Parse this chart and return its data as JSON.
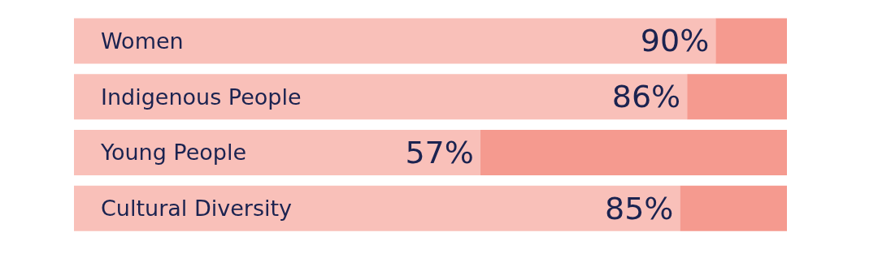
{
  "chart_data": {
    "type": "bar",
    "orientation": "horizontal",
    "stacked": true,
    "categories": [
      "Women",
      "Indigenous People",
      "Young People",
      "Cultural Diversity"
    ],
    "xlim": [
      0,
      100
    ],
    "series": [
      {
        "color": "#f9c0b9",
        "values": [
          90,
          86,
          57,
          85
        ],
        "value_labels": [
          "90%",
          "86%",
          "57%",
          "85%"
        ]
      },
      {
        "color": "#f59a8f",
        "values": [
          10,
          14,
          43,
          15
        ]
      }
    ]
  }
}
